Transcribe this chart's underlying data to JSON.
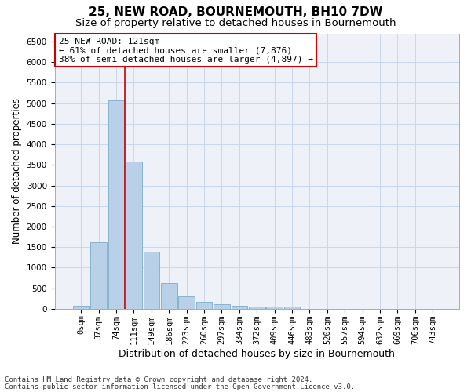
{
  "title": "25, NEW ROAD, BOURNEMOUTH, BH10 7DW",
  "subtitle": "Size of property relative to detached houses in Bournemouth",
  "xlabel": "Distribution of detached houses by size in Bournemouth",
  "ylabel": "Number of detached properties",
  "footer_line1": "Contains HM Land Registry data © Crown copyright and database right 2024.",
  "footer_line2": "Contains public sector information licensed under the Open Government Licence v3.0.",
  "bar_labels": [
    "0sqm",
    "37sqm",
    "74sqm",
    "111sqm",
    "149sqm",
    "186sqm",
    "223sqm",
    "260sqm",
    "297sqm",
    "334sqm",
    "372sqm",
    "409sqm",
    "446sqm",
    "483sqm",
    "520sqm",
    "557sqm",
    "594sqm",
    "632sqm",
    "669sqm",
    "706sqm",
    "743sqm"
  ],
  "bar_values": [
    75,
    1620,
    5060,
    3580,
    1390,
    620,
    305,
    160,
    105,
    65,
    50,
    50,
    50,
    0,
    0,
    0,
    0,
    0,
    0,
    0,
    0
  ],
  "bar_color": "#b8d0e8",
  "bar_edge_color": "#88b4d0",
  "ylim": [
    0,
    6700
  ],
  "yticks": [
    0,
    500,
    1000,
    1500,
    2000,
    2500,
    3000,
    3500,
    4000,
    4500,
    5000,
    5500,
    6000,
    6500
  ],
  "property_line_color": "#cc0000",
  "annotation_text": "25 NEW ROAD: 121sqm\n← 61% of detached houses are smaller (7,876)\n38% of semi-detached houses are larger (4,897) →",
  "annotation_box_color": "white",
  "annotation_box_edge_color": "#cc0000",
  "grid_color": "#c8d8ea",
  "background_color": "#eef2f8",
  "title_fontsize": 11,
  "subtitle_fontsize": 9.5,
  "xlabel_fontsize": 9,
  "ylabel_fontsize": 8.5,
  "tick_fontsize": 7.5,
  "annotation_fontsize": 8,
  "footer_fontsize": 6.5
}
